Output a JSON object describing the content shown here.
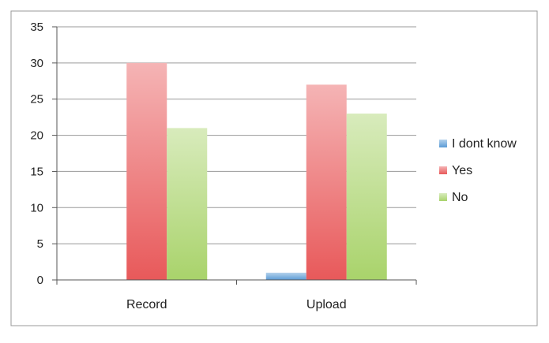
{
  "chart_data": {
    "type": "bar",
    "categories": [
      "Record",
      "Upload"
    ],
    "series": [
      {
        "name": "I dont know",
        "values": [
          0,
          1
        ],
        "color": "#5b9bd5"
      },
      {
        "name": "Yes",
        "values": [
          30,
          27
        ],
        "color": "#e8595a"
      },
      {
        "name": "No",
        "values": [
          21,
          23
        ],
        "color": "#a9d36b"
      }
    ],
    "ylim": [
      0,
      35
    ],
    "yticks": [
      0,
      5,
      10,
      15,
      20,
      25,
      30,
      35
    ],
    "grid": true,
    "legend_position": "right",
    "title": "",
    "xlabel": "",
    "ylabel": ""
  }
}
